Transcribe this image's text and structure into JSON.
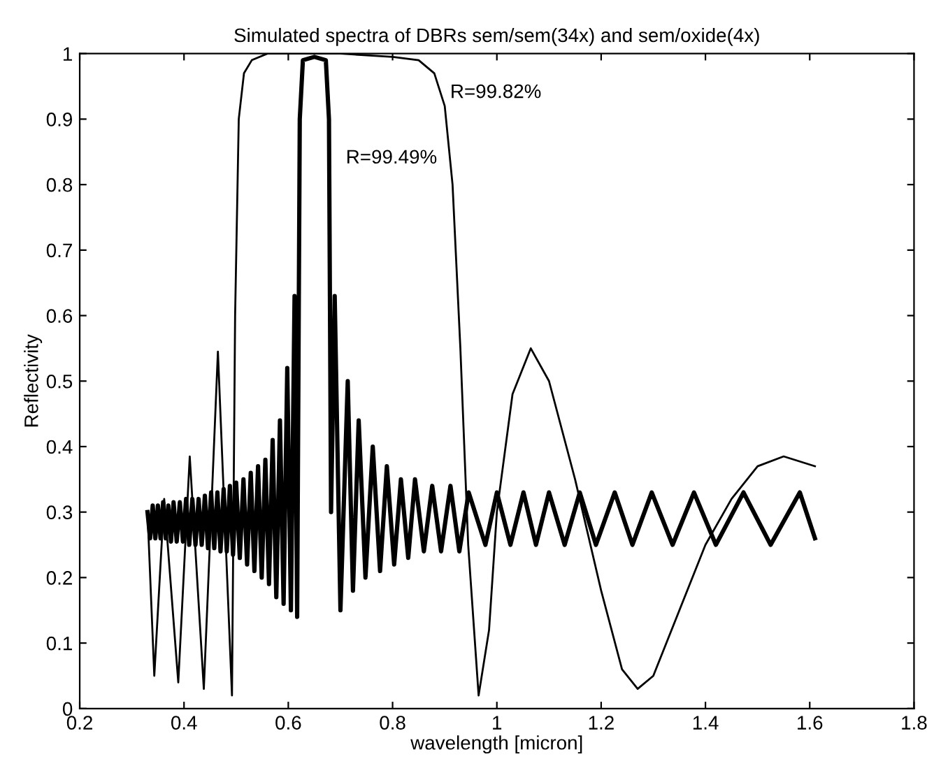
{
  "chart_data": {
    "type": "line",
    "title": "Simulated spectra of DBRs sem/sem(34x) and sem/oxide(4x)",
    "xlabel": "wavelength [micron]",
    "ylabel": "Reflectivity",
    "xlim": [
      0.2,
      1.8
    ],
    "ylim": [
      0,
      1
    ],
    "xticks": [
      0.2,
      0.4,
      0.6,
      0.8,
      1,
      1.2,
      1.4,
      1.6,
      1.8
    ],
    "yticks": [
      0,
      0.1,
      0.2,
      0.3,
      0.4,
      0.5,
      0.6,
      0.7,
      0.8,
      0.9,
      1
    ],
    "grid": false,
    "legend": false,
    "line_style": "solid",
    "marker": "none",
    "annotations": [
      "R=99.82%",
      "R=99.49%"
    ],
    "series": [
      {
        "color": "#000000",
        "x": [
          0.33,
          0.343,
          0.362,
          0.389,
          0.411,
          0.438,
          0.465,
          0.492,
          0.498,
          0.505,
          0.515,
          0.53,
          0.56,
          0.7,
          0.8,
          0.85,
          0.88,
          0.9,
          0.915,
          0.93,
          0.945,
          0.965,
          0.985,
          1.0,
          1.03,
          1.065,
          1.1,
          1.15,
          1.2,
          1.24,
          1.27,
          1.3,
          1.35,
          1.4,
          1.45,
          1.5,
          1.55,
          1.61
        ],
        "values": [
          0.3,
          0.05,
          0.32,
          0.04,
          0.385,
          0.03,
          0.545,
          0.02,
          0.6,
          0.9,
          0.97,
          0.99,
          1.0,
          1.0,
          0.995,
          0.99,
          0.97,
          0.92,
          0.8,
          0.55,
          0.25,
          0.02,
          0.12,
          0.3,
          0.48,
          0.55,
          0.5,
          0.35,
          0.18,
          0.06,
          0.03,
          0.05,
          0.15,
          0.25,
          0.32,
          0.37,
          0.385,
          0.37
        ]
      },
      {
        "color": "#000000",
        "x": [
          0.33,
          0.335,
          0.34,
          0.345,
          0.35,
          0.355,
          0.36,
          0.365,
          0.37,
          0.375,
          0.38,
          0.386,
          0.392,
          0.398,
          0.404,
          0.41,
          0.416,
          0.422,
          0.428,
          0.434,
          0.44,
          0.446,
          0.452,
          0.458,
          0.464,
          0.47,
          0.476,
          0.482,
          0.488,
          0.494,
          0.5,
          0.507,
          0.514,
          0.521,
          0.528,
          0.535,
          0.542,
          0.549,
          0.556,
          0.563,
          0.57,
          0.577,
          0.584,
          0.591,
          0.598,
          0.605,
          0.612,
          0.617,
          0.622,
          0.628,
          0.65,
          0.672,
          0.678,
          0.682,
          0.689,
          0.7,
          0.714,
          0.724,
          0.735,
          0.748,
          0.762,
          0.776,
          0.789,
          0.803,
          0.816,
          0.83,
          0.843,
          0.86,
          0.876,
          0.893,
          0.911,
          0.928,
          0.946,
          0.978,
          1.0,
          1.026,
          1.051,
          1.075,
          1.1,
          1.13,
          1.159,
          1.19,
          1.226,
          1.26,
          1.297,
          1.337,
          1.378,
          1.42,
          1.473,
          1.525,
          1.581,
          1.61
        ],
        "values": [
          0.3,
          0.26,
          0.31,
          0.26,
          0.31,
          0.26,
          0.315,
          0.26,
          0.31,
          0.255,
          0.315,
          0.255,
          0.315,
          0.255,
          0.32,
          0.25,
          0.32,
          0.25,
          0.32,
          0.25,
          0.325,
          0.245,
          0.33,
          0.245,
          0.33,
          0.24,
          0.335,
          0.24,
          0.34,
          0.235,
          0.345,
          0.23,
          0.35,
          0.22,
          0.36,
          0.21,
          0.37,
          0.2,
          0.38,
          0.19,
          0.41,
          0.17,
          0.44,
          0.16,
          0.52,
          0.15,
          0.63,
          0.14,
          0.9,
          0.99,
          0.995,
          0.99,
          0.9,
          0.3,
          0.63,
          0.15,
          0.5,
          0.18,
          0.44,
          0.2,
          0.4,
          0.21,
          0.37,
          0.22,
          0.35,
          0.23,
          0.35,
          0.24,
          0.34,
          0.24,
          0.34,
          0.24,
          0.33,
          0.25,
          0.33,
          0.25,
          0.33,
          0.25,
          0.33,
          0.25,
          0.33,
          0.25,
          0.33,
          0.25,
          0.33,
          0.25,
          0.33,
          0.25,
          0.33,
          0.25,
          0.33,
          0.26
        ]
      }
    ]
  }
}
